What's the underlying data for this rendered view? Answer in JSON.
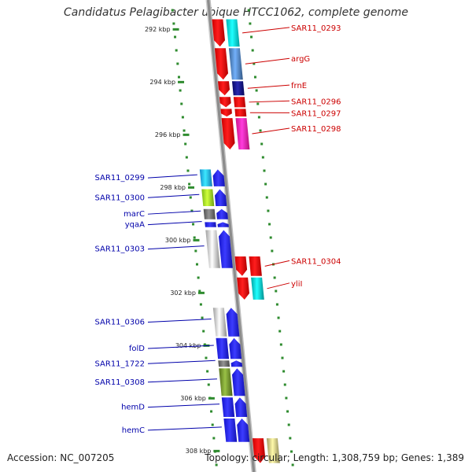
{
  "title": "Candidatus Pelagibacter ubique HTCC1062, complete genome",
  "accession": "Accession: NC_007205",
  "summary": "Topology: circular; Length: 1,308,759 bp; Genes: 1,389",
  "colors": {
    "backbone": "#8c8c8c",
    "dots": "#2e8b2e",
    "forward": "#1a1aff",
    "reverse": "#ff0000",
    "label_forward": "#0000aa",
    "label_reverse": "#cc0000"
  },
  "ticks": [
    {
      "label": "292 kbp",
      "kbp": 292
    },
    {
      "label": "294 kbp",
      "kbp": 294
    },
    {
      "label": "296 kbp",
      "kbp": 296
    },
    {
      "label": "298 kbp",
      "kbp": 298
    },
    {
      "label": "300 kbp",
      "kbp": 300
    },
    {
      "label": "302 kbp",
      "kbp": 302
    },
    {
      "label": "304 kbp",
      "kbp": 304
    },
    {
      "label": "306 kbp",
      "kbp": 306
    },
    {
      "label": "308 kbp",
      "kbp": 308
    }
  ],
  "reverse_genes": [
    {
      "label": "SAR11_0293",
      "start": 291.6,
      "end": 292.7,
      "color": "#00e5e5"
    },
    {
      "label": "argG",
      "start": 292.7,
      "end": 293.95,
      "color": "#4a7fbf"
    },
    {
      "label": "frnE",
      "start": 293.95,
      "end": 294.55,
      "color": "#0a0a80"
    },
    {
      "label": "SAR11_0296",
      "start": 294.55,
      "end": 295.0,
      "color": "#ff0000"
    },
    {
      "label": "SAR11_0297",
      "start": 295.0,
      "end": 295.35,
      "color": "#ff0000"
    },
    {
      "label": "SAR11_0298",
      "start": 295.35,
      "end": 296.6,
      "color": "#ff1aa8"
    },
    {
      "label": "SAR11_0304",
      "start": 300.6,
      "end": 301.4,
      "color": "#ff0000"
    },
    {
      "label": "yliI",
      "start": 301.4,
      "end": 302.3,
      "color": "#00cccc"
    },
    {
      "label": "",
      "start": 307.5,
      "end": 308.5,
      "color": "#c9bf7a"
    }
  ],
  "forward_genes": [
    {
      "label": "SAR11_0299",
      "start": 297.3,
      "end": 298.0,
      "color": "#1ab0ff"
    },
    {
      "label": "SAR11_0300",
      "start": 298.05,
      "end": 298.75,
      "color": "#9be61a"
    },
    {
      "label": "marC",
      "start": 298.8,
      "end": 299.25,
      "color": "#666666"
    },
    {
      "label": "yqaA",
      "start": 299.3,
      "end": 299.55,
      "color": "#1a1aff"
    },
    {
      "label": "SAR11_0303",
      "start": 299.6,
      "end": 301.1,
      "color": "#c8c8c8"
    },
    {
      "label": "SAR11_0306",
      "start": 302.55,
      "end": 303.7,
      "color": "#c8c8c8"
    },
    {
      "label": "folD",
      "start": 303.7,
      "end": 304.55,
      "color": "#1a1aff"
    },
    {
      "label": "SAR11_1722",
      "start": 304.55,
      "end": 304.85,
      "color": "#666666"
    },
    {
      "label": "SAR11_0308",
      "start": 304.85,
      "end": 305.95,
      "color": "#6b8e23"
    },
    {
      "label": "hemD",
      "start": 305.95,
      "end": 306.75,
      "color": "#1a1aff"
    },
    {
      "label": "hemC",
      "start": 306.75,
      "end": 307.7,
      "color": "#1a1aff"
    }
  ]
}
